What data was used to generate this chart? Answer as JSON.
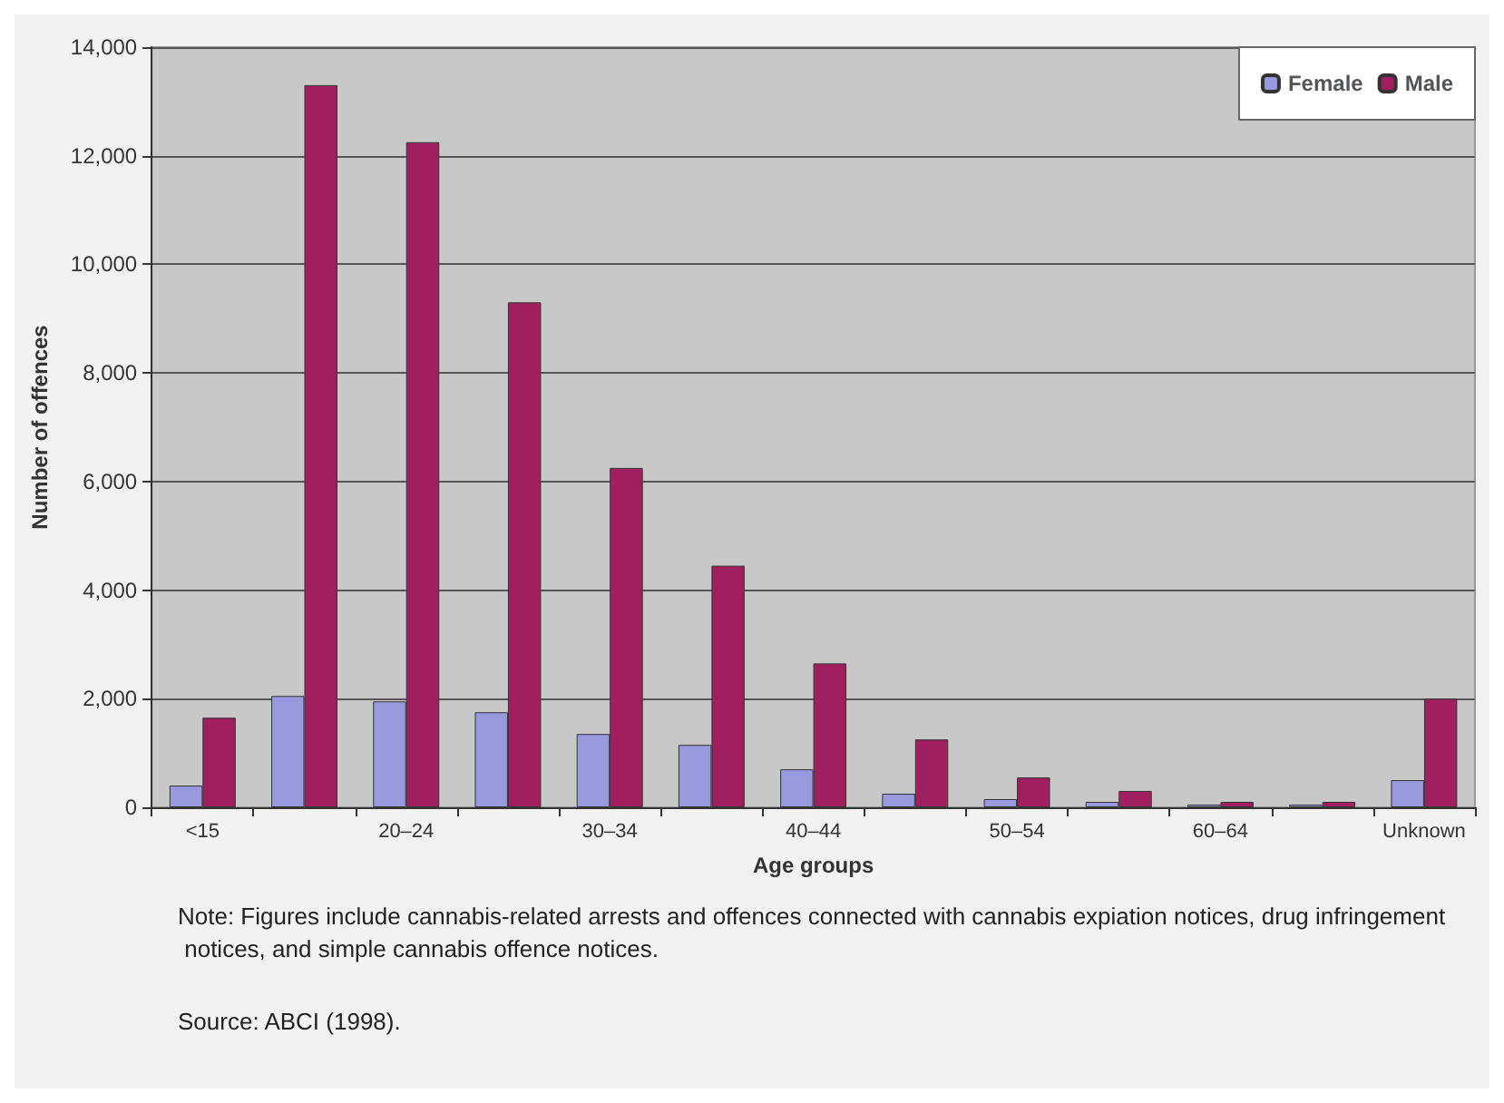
{
  "chart_data": {
    "type": "bar",
    "xlabel": "Age groups",
    "ylabel": "Number of offences",
    "categories": [
      "<15",
      null,
      "20–24",
      null,
      "30–34",
      null,
      "40–44",
      null,
      "50–54",
      null,
      "60–64",
      null,
      "Unknown"
    ],
    "series": [
      {
        "name": "Female",
        "color": "#9999dd",
        "values": [
          400,
          2050,
          1950,
          1750,
          1350,
          1150,
          700,
          250,
          150,
          100,
          50,
          50,
          500
        ]
      },
      {
        "name": "Male",
        "color": "#a0205f",
        "values": [
          1650,
          13300,
          12250,
          9300,
          6250,
          4450,
          2650,
          1250,
          550,
          300,
          100,
          100,
          2000
        ]
      }
    ],
    "ylim": [
      0,
      14000
    ],
    "yticks": [
      0,
      {
        "value": 2000,
        "label": "2,000"
      },
      {
        "value": 4000,
        "label": "4,000"
      },
      {
        "value": 6000,
        "label": "6,000"
      },
      {
        "value": 8000,
        "label": "8,000"
      },
      {
        "value": 10000,
        "label": "10,000"
      },
      {
        "value": 12000,
        "label": "12,000"
      },
      {
        "value": 14000,
        "label": "14,000"
      }
    ],
    "grid": "y",
    "legend": "top right",
    "annotations": [
      "Note: Figures include cannabis-related arrests and offences connected with cannabis expiation notices, drug infringement notices, and simple cannabis offence notices.",
      "Source: ABCI (1998)."
    ]
  }
}
